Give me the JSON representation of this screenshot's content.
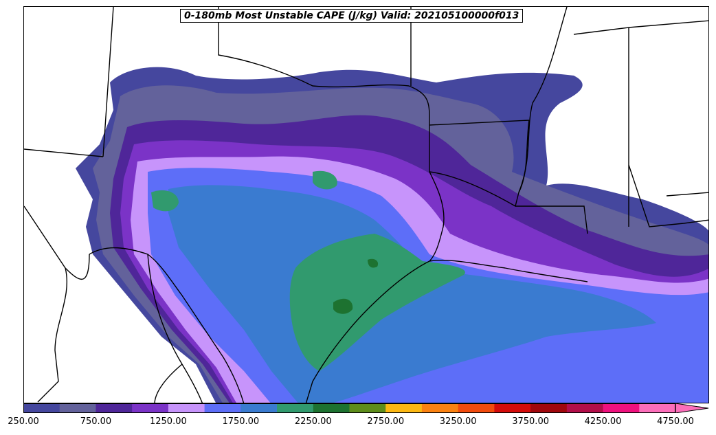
{
  "title": "0-180mb Most Unstable CAPE (J/kg) Valid: 202105100000f013",
  "colorbar": {
    "levels": [
      250,
      500,
      750,
      1000,
      1250,
      1500,
      1750,
      2000,
      2250,
      2500,
      2750,
      3000,
      3250,
      3500,
      3750,
      4000,
      4250,
      4500,
      4750
    ],
    "colors": [
      "#45479e",
      "#63629b",
      "#4f2699",
      "#7b33c7",
      "#c794fb",
      "#5d6ef8",
      "#3a7bd0",
      "#319a6e",
      "#1d7230",
      "#5e8d1b",
      "#fcb813",
      "#fb8211",
      "#f24b0d",
      "#d40b0a",
      "#a0070c",
      "#b20e49",
      "#ef117e",
      "#fc6eba"
    ],
    "extend": "max",
    "tick_labels": [
      "250.00",
      "750.00",
      "1250.00",
      "1750.00",
      "2250.00",
      "2750.00",
      "3250.00",
      "3750.00",
      "4250.00",
      "4750.00"
    ]
  },
  "legend": {
    "colorbar_position": "bottom"
  }
}
